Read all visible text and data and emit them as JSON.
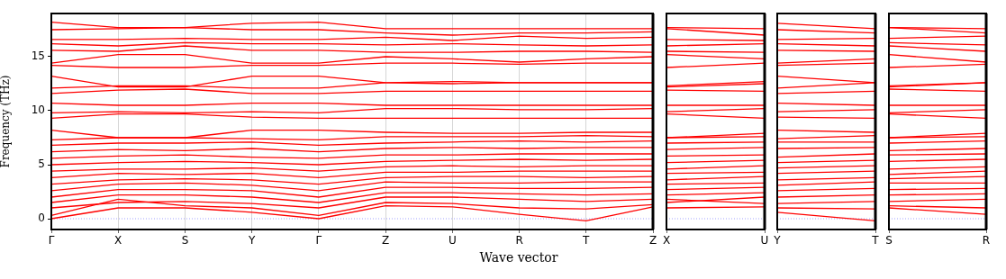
{
  "chart_data": [
    {
      "type": "line",
      "ylabel": "Frequency (THz)",
      "xlabel": "Wave vector",
      "categories": [
        "Γ",
        "X",
        "S",
        "Y",
        "Γ",
        "Z",
        "U",
        "R",
        "T",
        "Z"
      ],
      "ylim": [
        -1,
        19
      ],
      "yticks": [
        0,
        5,
        10,
        15
      ],
      "grid": "x",
      "marker": "none",
      "line_style": "solid",
      "ref_lines": [
        {
          "axis": "y",
          "value": 0,
          "color": "#8888ff",
          "line_style": "dotted"
        }
      ],
      "series": [
        {
          "color": "#ff0000",
          "values": [
            0,
            1.0,
            1.0,
            0.6,
            0,
            1.2,
            1.1,
            0.4,
            -0.2,
            1.1
          ]
        },
        {
          "color": "#ff0000",
          "values": [
            0.3,
            1.8,
            1.2,
            1.0,
            0.3,
            1.5,
            1.4,
            1.0,
            0.9,
            1.3
          ]
        },
        {
          "color": "#ff0000",
          "values": [
            1.0,
            1.5,
            1.6,
            1.4,
            1.0,
            2.0,
            2.0,
            1.8,
            1.6,
            1.8
          ]
        },
        {
          "color": "#ff0000",
          "values": [
            1.5,
            2.2,
            2.2,
            2.0,
            1.5,
            2.4,
            2.4,
            2.3,
            2.2,
            2.3
          ]
        },
        {
          "color": "#ff0000",
          "values": [
            2.0,
            2.7,
            2.7,
            2.6,
            2.0,
            2.9,
            2.9,
            2.8,
            2.8,
            2.9
          ]
        },
        {
          "color": "#ff0000",
          "values": [
            2.6,
            3.2,
            3.3,
            3.1,
            2.6,
            3.4,
            3.3,
            3.3,
            3.4,
            3.4
          ]
        },
        {
          "color": "#ff0000",
          "values": [
            3.2,
            3.6,
            3.7,
            3.6,
            3.2,
            3.8,
            3.9,
            3.9,
            3.8,
            3.9
          ]
        },
        {
          "color": "#ff0000",
          "values": [
            3.8,
            4.2,
            4.1,
            4.2,
            3.8,
            4.3,
            4.3,
            4.4,
            4.4,
            4.4
          ]
        },
        {
          "color": "#ff0000",
          "values": [
            4.4,
            4.6,
            4.6,
            4.7,
            4.4,
            4.8,
            4.9,
            4.8,
            4.9,
            4.9
          ]
        },
        {
          "color": "#ff0000",
          "values": [
            5.0,
            5.2,
            5.3,
            5.2,
            5.0,
            5.3,
            5.4,
            5.5,
            5.4,
            5.5
          ]
        },
        {
          "color": "#ff0000",
          "values": [
            5.6,
            5.8,
            5.9,
            5.7,
            5.6,
            5.9,
            5.9,
            6.0,
            6.0,
            6.0
          ]
        },
        {
          "color": "#ff0000",
          "values": [
            6.2,
            6.4,
            6.3,
            6.5,
            6.2,
            6.5,
            6.6,
            6.5,
            6.6,
            6.6
          ]
        },
        {
          "color": "#ff0000",
          "values": [
            6.8,
            7.0,
            7.0,
            7.1,
            6.8,
            7.0,
            7.1,
            7.2,
            7.1,
            7.2
          ]
        },
        {
          "color": "#ff0000",
          "values": [
            7.3,
            7.5,
            7.5,
            7.4,
            7.3,
            7.6,
            7.6,
            7.6,
            7.7,
            7.6
          ]
        },
        {
          "color": "#ff0000",
          "values": [
            8.2,
            7.5,
            7.5,
            8.2,
            8.2,
            8.0,
            7.9,
            7.9,
            8.0,
            8.0
          ]
        },
        {
          "color": "#ff0000",
          "values": [
            9.3,
            9.7,
            9.7,
            9.4,
            9.3,
            9.3,
            9.3,
            9.3,
            9.3,
            9.3
          ]
        },
        {
          "color": "#ff0000",
          "values": [
            9.8,
            9.9,
            9.8,
            9.9,
            9.8,
            10.2,
            10.2,
            10.1,
            10.1,
            10.2
          ]
        },
        {
          "color": "#ff0000",
          "values": [
            10.7,
            10.5,
            10.5,
            10.7,
            10.7,
            10.5,
            10.5,
            10.5,
            10.5,
            10.5
          ]
        },
        {
          "color": "#ff0000",
          "values": [
            11.6,
            11.9,
            12.0,
            11.6,
            11.6,
            11.8,
            11.8,
            11.8,
            11.8,
            11.8
          ]
        },
        {
          "color": "#ff0000",
          "values": [
            12.1,
            12.3,
            12.3,
            12.1,
            12.1,
            12.6,
            12.7,
            12.6,
            12.6,
            12.6
          ]
        },
        {
          "color": "#ff0000",
          "values": [
            13.2,
            12.2,
            12.2,
            13.2,
            13.2,
            12.6,
            12.5,
            12.6,
            12.6,
            12.6
          ]
        },
        {
          "color": "#ff0000",
          "values": [
            14.2,
            14.0,
            14.0,
            14.2,
            14.2,
            14.4,
            14.4,
            14.3,
            14.4,
            14.4
          ]
        },
        {
          "color": "#ff0000",
          "values": [
            14.4,
            15.2,
            15.2,
            14.4,
            14.4,
            15.0,
            14.8,
            14.5,
            14.8,
            15.0
          ]
        },
        {
          "color": "#ff0000",
          "values": [
            15.6,
            15.5,
            16.0,
            15.6,
            15.6,
            15.4,
            15.4,
            15.5,
            15.5,
            15.4
          ]
        },
        {
          "color": "#ff0000",
          "values": [
            16.2,
            16.0,
            16.3,
            16.2,
            16.2,
            16.1,
            16.2,
            16.1,
            16.0,
            16.1
          ]
        },
        {
          "color": "#ff0000",
          "values": [
            16.6,
            16.6,
            16.7,
            16.6,
            16.6,
            16.8,
            16.5,
            16.9,
            16.7,
            16.8
          ]
        },
        {
          "color": "#ff0000",
          "values": [
            17.5,
            17.6,
            17.7,
            17.5,
            17.5,
            17.2,
            17.0,
            17.2,
            17.2,
            17.3
          ]
        },
        {
          "color": "#ff0000",
          "values": [
            18.2,
            17.7,
            17.7,
            18.1,
            18.2,
            17.6,
            17.6,
            17.6,
            17.6,
            17.6
          ]
        }
      ]
    },
    {
      "type": "line",
      "categories": [
        "X",
        "U"
      ],
      "ylim": [
        -1,
        19
      ],
      "yticks": [
        0,
        5,
        10,
        15
      ],
      "tick_labels": "x",
      "marker": "none",
      "line_style": "solid",
      "ref_lines": [
        {
          "axis": "y",
          "value": 0,
          "color": "#8888ff",
          "line_style": "dotted"
        }
      ],
      "series": [
        {
          "color": "#ff0000",
          "values": [
            1.0,
            1.1
          ]
        },
        {
          "color": "#ff0000",
          "values": [
            1.8,
            1.4
          ]
        },
        {
          "color": "#ff0000",
          "values": [
            1.5,
            2.0
          ]
        },
        {
          "color": "#ff0000",
          "values": [
            2.2,
            2.4
          ]
        },
        {
          "color": "#ff0000",
          "values": [
            2.7,
            2.9
          ]
        },
        {
          "color": "#ff0000",
          "values": [
            3.2,
            3.3
          ]
        },
        {
          "color": "#ff0000",
          "values": [
            3.6,
            3.9
          ]
        },
        {
          "color": "#ff0000",
          "values": [
            4.2,
            4.3
          ]
        },
        {
          "color": "#ff0000",
          "values": [
            4.6,
            4.9
          ]
        },
        {
          "color": "#ff0000",
          "values": [
            5.2,
            5.4
          ]
        },
        {
          "color": "#ff0000",
          "values": [
            5.8,
            5.9
          ]
        },
        {
          "color": "#ff0000",
          "values": [
            6.4,
            6.6
          ]
        },
        {
          "color": "#ff0000",
          "values": [
            7.0,
            7.1
          ]
        },
        {
          "color": "#ff0000",
          "values": [
            7.5,
            7.6
          ]
        },
        {
          "color": "#ff0000",
          "values": [
            7.5,
            7.9
          ]
        },
        {
          "color": "#ff0000",
          "values": [
            9.7,
            9.3
          ]
        },
        {
          "color": "#ff0000",
          "values": [
            9.9,
            10.2
          ]
        },
        {
          "color": "#ff0000",
          "values": [
            10.5,
            10.5
          ]
        },
        {
          "color": "#ff0000",
          "values": [
            11.9,
            11.8
          ]
        },
        {
          "color": "#ff0000",
          "values": [
            12.3,
            12.7
          ]
        },
        {
          "color": "#ff0000",
          "values": [
            12.2,
            12.5
          ]
        },
        {
          "color": "#ff0000",
          "values": [
            14.0,
            14.4
          ]
        },
        {
          "color": "#ff0000",
          "values": [
            15.2,
            14.8
          ]
        },
        {
          "color": "#ff0000",
          "values": [
            15.5,
            15.4
          ]
        },
        {
          "color": "#ff0000",
          "values": [
            16.0,
            16.2
          ]
        },
        {
          "color": "#ff0000",
          "values": [
            16.6,
            16.5
          ]
        },
        {
          "color": "#ff0000",
          "values": [
            17.6,
            17.0
          ]
        },
        {
          "color": "#ff0000",
          "values": [
            17.7,
            17.6
          ]
        }
      ]
    },
    {
      "type": "line",
      "categories": [
        "Y",
        "T"
      ],
      "ylim": [
        -1,
        19
      ],
      "yticks": [
        0,
        5,
        10,
        15
      ],
      "tick_labels": "x",
      "marker": "none",
      "line_style": "solid",
      "ref_lines": [
        {
          "axis": "y",
          "value": 0,
          "color": "#8888ff",
          "line_style": "dotted"
        }
      ],
      "series": [
        {
          "color": "#ff0000",
          "values": [
            0.6,
            -0.2
          ]
        },
        {
          "color": "#ff0000",
          "values": [
            1.0,
            0.9
          ]
        },
        {
          "color": "#ff0000",
          "values": [
            1.4,
            1.6
          ]
        },
        {
          "color": "#ff0000",
          "values": [
            2.0,
            2.2
          ]
        },
        {
          "color": "#ff0000",
          "values": [
            2.6,
            2.8
          ]
        },
        {
          "color": "#ff0000",
          "values": [
            3.1,
            3.4
          ]
        },
        {
          "color": "#ff0000",
          "values": [
            3.6,
            3.8
          ]
        },
        {
          "color": "#ff0000",
          "values": [
            4.2,
            4.4
          ]
        },
        {
          "color": "#ff0000",
          "values": [
            4.7,
            4.9
          ]
        },
        {
          "color": "#ff0000",
          "values": [
            5.2,
            5.4
          ]
        },
        {
          "color": "#ff0000",
          "values": [
            5.7,
            6.0
          ]
        },
        {
          "color": "#ff0000",
          "values": [
            6.5,
            6.6
          ]
        },
        {
          "color": "#ff0000",
          "values": [
            7.1,
            7.1
          ]
        },
        {
          "color": "#ff0000",
          "values": [
            7.4,
            7.7
          ]
        },
        {
          "color": "#ff0000",
          "values": [
            8.2,
            8.0
          ]
        },
        {
          "color": "#ff0000",
          "values": [
            9.4,
            9.3
          ]
        },
        {
          "color": "#ff0000",
          "values": [
            9.9,
            10.1
          ]
        },
        {
          "color": "#ff0000",
          "values": [
            10.7,
            10.5
          ]
        },
        {
          "color": "#ff0000",
          "values": [
            11.6,
            11.8
          ]
        },
        {
          "color": "#ff0000",
          "values": [
            12.1,
            12.6
          ]
        },
        {
          "color": "#ff0000",
          "values": [
            13.2,
            12.6
          ]
        },
        {
          "color": "#ff0000",
          "values": [
            14.2,
            14.4
          ]
        },
        {
          "color": "#ff0000",
          "values": [
            14.4,
            14.8
          ]
        },
        {
          "color": "#ff0000",
          "values": [
            15.6,
            15.5
          ]
        },
        {
          "color": "#ff0000",
          "values": [
            16.2,
            16.0
          ]
        },
        {
          "color": "#ff0000",
          "values": [
            16.6,
            16.7
          ]
        },
        {
          "color": "#ff0000",
          "values": [
            17.5,
            17.2
          ]
        },
        {
          "color": "#ff0000",
          "values": [
            18.1,
            17.6
          ]
        }
      ]
    },
    {
      "type": "line",
      "categories": [
        "S",
        "R"
      ],
      "ylim": [
        -1,
        19
      ],
      "yticks": [
        0,
        5,
        10,
        15
      ],
      "tick_labels": "x",
      "marker": "none",
      "line_style": "solid",
      "ref_lines": [
        {
          "axis": "y",
          "value": 0,
          "color": "#8888ff",
          "line_style": "dotted"
        }
      ],
      "series": [
        {
          "color": "#ff0000",
          "values": [
            1.0,
            0.4
          ]
        },
        {
          "color": "#ff0000",
          "values": [
            1.2,
            1.0
          ]
        },
        {
          "color": "#ff0000",
          "values": [
            1.6,
            1.8
          ]
        },
        {
          "color": "#ff0000",
          "values": [
            2.2,
            2.3
          ]
        },
        {
          "color": "#ff0000",
          "values": [
            2.7,
            2.8
          ]
        },
        {
          "color": "#ff0000",
          "values": [
            3.3,
            3.3
          ]
        },
        {
          "color": "#ff0000",
          "values": [
            3.7,
            3.9
          ]
        },
        {
          "color": "#ff0000",
          "values": [
            4.1,
            4.4
          ]
        },
        {
          "color": "#ff0000",
          "values": [
            4.6,
            4.8
          ]
        },
        {
          "color": "#ff0000",
          "values": [
            5.3,
            5.5
          ]
        },
        {
          "color": "#ff0000",
          "values": [
            5.9,
            6.0
          ]
        },
        {
          "color": "#ff0000",
          "values": [
            6.3,
            6.5
          ]
        },
        {
          "color": "#ff0000",
          "values": [
            7.0,
            7.2
          ]
        },
        {
          "color": "#ff0000",
          "values": [
            7.5,
            7.6
          ]
        },
        {
          "color": "#ff0000",
          "values": [
            7.5,
            7.9
          ]
        },
        {
          "color": "#ff0000",
          "values": [
            9.7,
            9.3
          ]
        },
        {
          "color": "#ff0000",
          "values": [
            9.8,
            10.1
          ]
        },
        {
          "color": "#ff0000",
          "values": [
            10.5,
            10.5
          ]
        },
        {
          "color": "#ff0000",
          "values": [
            12.0,
            11.8
          ]
        },
        {
          "color": "#ff0000",
          "values": [
            12.3,
            12.6
          ]
        },
        {
          "color": "#ff0000",
          "values": [
            12.2,
            12.6
          ]
        },
        {
          "color": "#ff0000",
          "values": [
            14.0,
            14.3
          ]
        },
        {
          "color": "#ff0000",
          "values": [
            15.2,
            14.5
          ]
        },
        {
          "color": "#ff0000",
          "values": [
            16.0,
            15.5
          ]
        },
        {
          "color": "#ff0000",
          "values": [
            16.3,
            16.1
          ]
        },
        {
          "color": "#ff0000",
          "values": [
            16.7,
            16.9
          ]
        },
        {
          "color": "#ff0000",
          "values": [
            17.7,
            17.2
          ]
        },
        {
          "color": "#ff0000",
          "values": [
            17.7,
            17.6
          ]
        }
      ]
    }
  ]
}
